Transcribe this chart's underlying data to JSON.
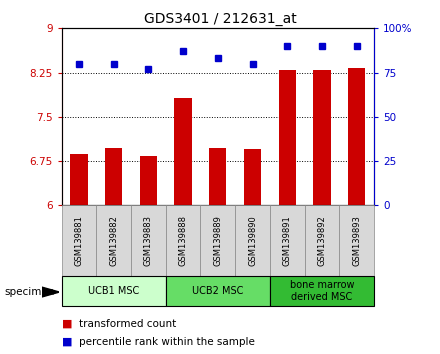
{
  "title": "GDS3401 / 212631_at",
  "samples": [
    "GSM139881",
    "GSM139882",
    "GSM139883",
    "GSM139888",
    "GSM139889",
    "GSM139890",
    "GSM139891",
    "GSM139892",
    "GSM139893"
  ],
  "bar_values": [
    6.87,
    6.97,
    6.84,
    7.82,
    6.97,
    6.95,
    8.3,
    8.3,
    8.32
  ],
  "dot_values": [
    80,
    80,
    77,
    87,
    83,
    80,
    90,
    90,
    90
  ],
  "bar_color": "#cc0000",
  "dot_color": "#0000cc",
  "ylim_left": [
    6,
    9
  ],
  "ylim_right": [
    0,
    100
  ],
  "yticks_left": [
    6,
    6.75,
    7.5,
    8.25,
    9
  ],
  "yticks_right": [
    0,
    25,
    50,
    75,
    100
  ],
  "ytick_labels_left": [
    "6",
    "6.75",
    "7.5",
    "8.25",
    "9"
  ],
  "ytick_labels_right": [
    "0",
    "25",
    "50",
    "75",
    "100%"
  ],
  "groups": [
    {
      "label": "UCB1 MSC",
      "start": 0,
      "end": 3,
      "color": "#ccffcc"
    },
    {
      "label": "UCB2 MSC",
      "start": 3,
      "end": 6,
      "color": "#66dd66"
    },
    {
      "label": "bone marrow\nderived MSC",
      "start": 6,
      "end": 9,
      "color": "#33bb33"
    }
  ],
  "legend_bar_label": "transformed count",
  "legend_dot_label": "percentile rank within the sample",
  "specimen_label": "specimen",
  "tick_label_color_left": "#cc0000",
  "tick_label_color_right": "#0000cc",
  "bar_width": 0.5,
  "title_fontsize": 10,
  "tick_fontsize": 7.5,
  "sample_fontsize": 6,
  "group_fontsize": 7,
  "legend_fontsize": 7.5
}
